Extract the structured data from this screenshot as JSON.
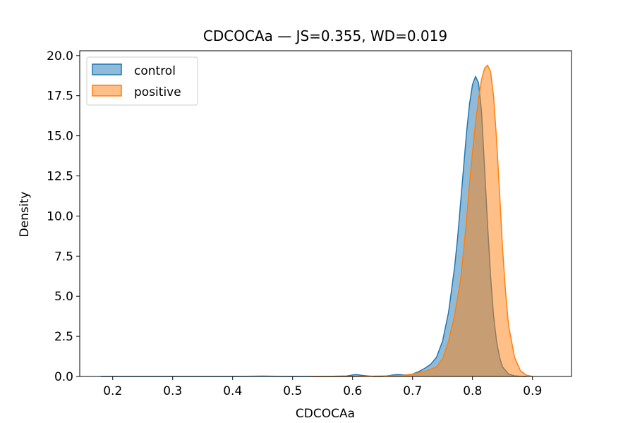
{
  "chart_data": {
    "type": "area",
    "title": "CDCOCAa — JS=0.355, WD=0.019",
    "xlabel": "CDCOCAa",
    "ylabel": "Density",
    "xlim": [
      0.145,
      0.965
    ],
    "ylim": [
      0,
      20.3
    ],
    "xticks": [
      0.2,
      0.3,
      0.4,
      0.5,
      0.6,
      0.7,
      0.8,
      0.9
    ],
    "xtick_labels": [
      "0.2",
      "0.3",
      "0.4",
      "0.5",
      "0.6",
      "0.7",
      "0.8",
      "0.9"
    ],
    "yticks": [
      0,
      2.5,
      5,
      7.5,
      10,
      12.5,
      15,
      17.5,
      20
    ],
    "ytick_labels": [
      "0.0",
      "2.5",
      "5.0",
      "7.5",
      "10.0",
      "12.5",
      "15.0",
      "17.5",
      "20.0"
    ],
    "grid": false,
    "legend_position": "upper-left",
    "series": [
      {
        "name": "control",
        "color": "#1f77b4",
        "fill_opacity": 0.5,
        "x": [
          0.18,
          0.3,
          0.4,
          0.45,
          0.5,
          0.55,
          0.59,
          0.605,
          0.62,
          0.635,
          0.65,
          0.665,
          0.675,
          0.69,
          0.7,
          0.71,
          0.72,
          0.73,
          0.74,
          0.75,
          0.76,
          0.77,
          0.775,
          0.78,
          0.785,
          0.79,
          0.795,
          0.8,
          0.805,
          0.81,
          0.815,
          0.82,
          0.825,
          0.83,
          0.835,
          0.84,
          0.845,
          0.85,
          0.86,
          0.87,
          0.88,
          0.89
        ],
        "y": [
          0.0,
          0.0,
          0.0,
          0.02,
          0.0,
          0.0,
          0.03,
          0.12,
          0.05,
          0.0,
          0.0,
          0.08,
          0.12,
          0.08,
          0.15,
          0.3,
          0.5,
          0.75,
          1.2,
          2.2,
          4.0,
          6.8,
          8.6,
          10.8,
          13.0,
          15.2,
          17.0,
          18.2,
          18.7,
          18.3,
          16.5,
          13.0,
          9.5,
          6.3,
          3.8,
          2.2,
          1.2,
          0.6,
          0.15,
          0.04,
          0.01,
          0.0
        ]
      },
      {
        "name": "positive",
        "color": "#ff7f0e",
        "fill_opacity": 0.5,
        "x": [
          0.53,
          0.6,
          0.65,
          0.68,
          0.7,
          0.72,
          0.74,
          0.75,
          0.76,
          0.77,
          0.78,
          0.785,
          0.79,
          0.795,
          0.8,
          0.805,
          0.81,
          0.815,
          0.82,
          0.825,
          0.83,
          0.835,
          0.84,
          0.845,
          0.85,
          0.855,
          0.86,
          0.87,
          0.88,
          0.89,
          0.9
        ],
        "y": [
          0.0,
          0.0,
          0.03,
          0.05,
          0.15,
          0.3,
          0.6,
          1.1,
          2.2,
          3.8,
          6.0,
          7.8,
          9.8,
          12.0,
          14.0,
          15.8,
          17.3,
          18.5,
          19.2,
          19.4,
          19.0,
          17.5,
          14.8,
          11.5,
          8.0,
          5.3,
          3.2,
          1.2,
          0.35,
          0.08,
          0.0
        ]
      }
    ]
  }
}
